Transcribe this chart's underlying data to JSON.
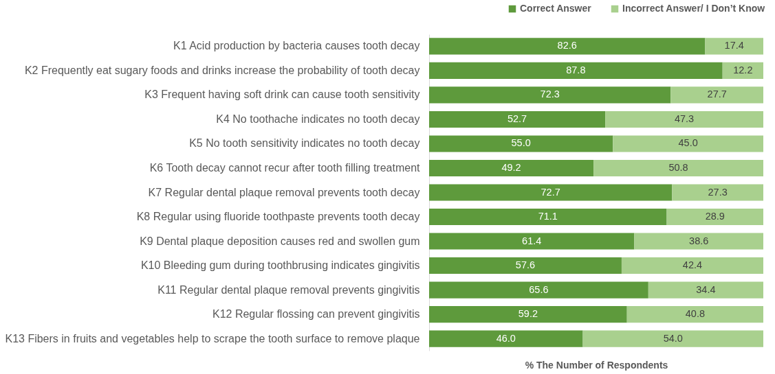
{
  "chart_data": {
    "type": "bar",
    "orientation": "horizontal",
    "stacked": true,
    "legend": "top right",
    "tick_labels": "y",
    "grid": false,
    "xlabel": "% The Number of Respondents",
    "xlim": [
      0,
      100
    ],
    "categories": [
      "K1 Acid production by bacteria causes tooth decay",
      "K2 Frequently eat sugary foods and drinks increase the probability of tooth decay",
      "K3 Frequent having soft drink can cause tooth sensitivity",
      "K4 No toothache indicates no tooth decay",
      "K5 No tooth sensitivity indicates no tooth decay",
      "K6 Tooth decay cannot recur after tooth filling treatment",
      "K7 Regular dental plaque removal prevents tooth decay",
      "K8 Regular using fluoride toothpaste prevents tooth decay",
      "K9 Dental plaque deposition causes red and swollen gum",
      "K10 Bleeding gum during toothbrusing indicates gingivitis",
      "K11 Regular dental plaque removal prevents gingivitis",
      "K12 Regular flossing can prevent gingivitis",
      "K13 Fibers in fruits and vegetables help to scrape the tooth surface to remove plaque"
    ],
    "series": [
      {
        "name": "Correct Answer",
        "color": "#5e9a3c",
        "values": [
          82.6,
          87.8,
          72.3,
          52.7,
          55.0,
          49.2,
          72.7,
          71.1,
          61.4,
          57.6,
          65.6,
          59.2,
          46.0
        ],
        "value_labels": [
          "82.6",
          "87.8",
          "72.3",
          "52.7",
          "55.0",
          "49.2",
          "72.7",
          "71.1",
          "61.4",
          "57.6",
          "65.6",
          "59.2",
          "46.0"
        ]
      },
      {
        "name": "Incorrect Answer/ I Don’t Know",
        "color": "#a9d08e",
        "values": [
          17.4,
          12.2,
          27.7,
          47.3,
          45.0,
          50.8,
          27.3,
          28.9,
          38.6,
          42.4,
          34.4,
          40.8,
          54.0
        ],
        "value_labels": [
          "17.4",
          "12.2",
          "27.7",
          "47.3",
          "45.0",
          "50.8",
          "27.3",
          "28.9",
          "38.6",
          "42.4",
          "34.4",
          "40.8",
          "54.0"
        ]
      }
    ]
  }
}
